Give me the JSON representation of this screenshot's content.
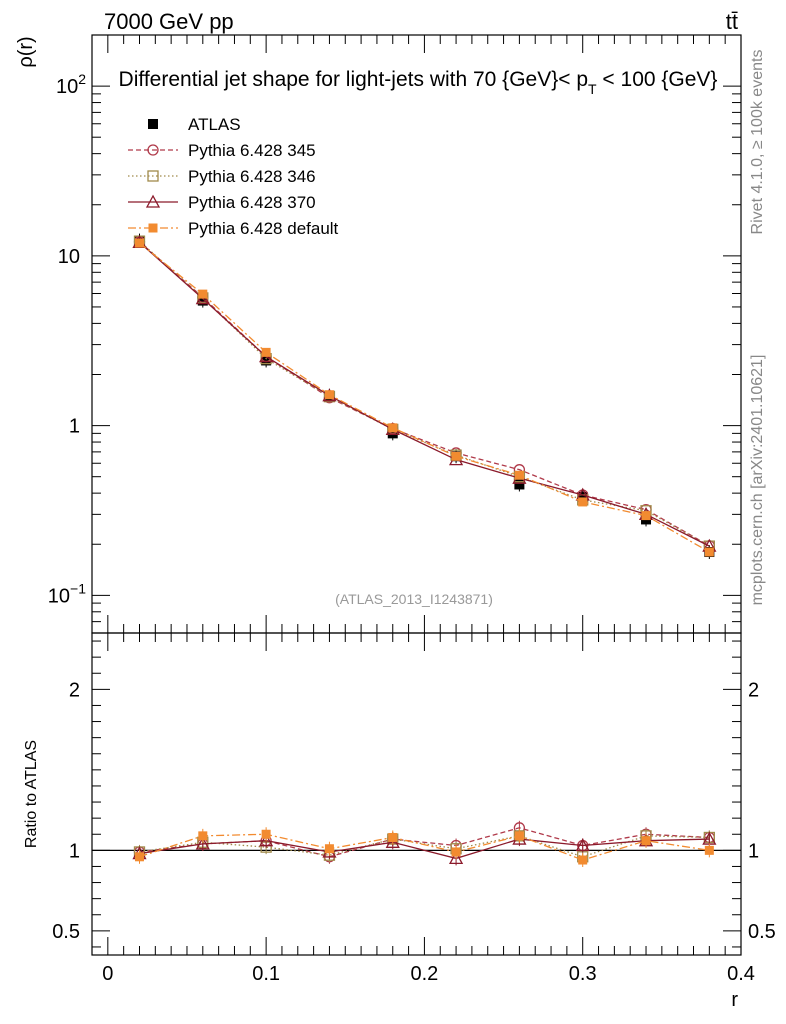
{
  "header": {
    "energy_label": "7000 GeV pp",
    "process_label": "tt̄"
  },
  "side_labels": {
    "rivet": "Rivet 4.1.0, ≥ 100k events",
    "mcplots": "mcplots.cern.ch [arXiv:2401.10621]"
  },
  "analysis_tag": "(ATLAS_2013_I1243871)",
  "chart_data": [
    {
      "type": "line",
      "title": "Differential jet shape for light-jets with 70 {GeV}< p_T < 100 {GeV}",
      "title_main": "Differential jet shape for light-jets with 70 {GeV}< p",
      "title_sub": "T",
      "title_end": " < 100 {GeV}",
      "xlabel": "r",
      "ylabel": "ρ(r)",
      "yscale": "log",
      "xlim": [
        -0.01,
        0.4
      ],
      "ylim": [
        0.06,
        200
      ],
      "x": [
        0.02,
        0.06,
        0.1,
        0.14,
        0.18,
        0.22,
        0.26,
        0.3,
        0.34,
        0.38
      ],
      "y_ticks": [
        {
          "value": 100,
          "base": "10",
          "exp": "2"
        },
        {
          "value": 10,
          "base": "10",
          "exp": ""
        },
        {
          "value": 1,
          "base": "1",
          "exp": ""
        },
        {
          "value": 0.1,
          "base": "10",
          "exp": "−1"
        }
      ],
      "series": [
        {
          "name": "ATLAS",
          "marker": "square-filled",
          "color": "#000000",
          "values": [
            12.3,
            5.45,
            2.42,
            1.5,
            0.9,
            0.66,
            0.45,
            0.38,
            0.28,
            0.18
          ]
        },
        {
          "name": "Pythia 6.428 345",
          "marker": "circle-open",
          "color": "#b03a4a",
          "dash": "5,3",
          "values": [
            12.1,
            5.7,
            2.55,
            1.46,
            0.96,
            0.69,
            0.55,
            0.39,
            0.32,
            0.196
          ]
        },
        {
          "name": "Pythia 6.428 346",
          "marker": "square-open",
          "color": "#a08a4a",
          "dash": "1.5,2.5",
          "values": [
            12.2,
            5.65,
            2.48,
            1.48,
            0.95,
            0.67,
            0.5,
            0.365,
            0.315,
            0.195
          ]
        },
        {
          "name": "Pythia 6.428 370",
          "marker": "triangle-open",
          "color": "#8b1a2b",
          "dash": "",
          "values": [
            12.0,
            5.6,
            2.55,
            1.5,
            0.95,
            0.63,
            0.49,
            0.39,
            0.3,
            0.195
          ]
        },
        {
          "name": "Pythia 6.428 default",
          "marker": "square-filled",
          "color": "#f28b30",
          "dash": "8,3,2,3",
          "values": [
            11.9,
            5.95,
            2.7,
            1.52,
            0.97,
            0.66,
            0.51,
            0.355,
            0.295,
            0.18
          ]
        }
      ]
    },
    {
      "type": "line",
      "ylabel": "Ratio to ATLAS",
      "xlabel": "r",
      "xlim": [
        -0.01,
        0.4
      ],
      "ylim": [
        0.35,
        2.35
      ],
      "y_ticks": [
        0.5,
        1,
        2
      ],
      "x_ticks": [
        0,
        0.1,
        0.2,
        0.3,
        0.4
      ],
      "x": [
        0.02,
        0.06,
        0.1,
        0.14,
        0.18,
        0.22,
        0.26,
        0.3,
        0.34,
        0.38
      ],
      "series": [
        {
          "name": "Pythia 6.428 345",
          "values": [
            0.99,
            1.04,
            1.06,
            0.96,
            1.07,
            1.03,
            1.14,
            1.03,
            1.1,
            1.08
          ]
        },
        {
          "name": "Pythia 6.428 346",
          "values": [
            0.99,
            1.05,
            1.02,
            0.97,
            1.07,
            1.01,
            1.09,
            0.96,
            1.09,
            1.08
          ]
        },
        {
          "name": "Pythia 6.428 370",
          "values": [
            0.98,
            1.04,
            1.06,
            0.99,
            1.05,
            0.95,
            1.07,
            1.03,
            1.06,
            1.07
          ]
        },
        {
          "name": "Pythia 6.428 default",
          "values": [
            0.96,
            1.09,
            1.1,
            1.01,
            1.08,
            0.99,
            1.09,
            0.94,
            1.06,
            1.0
          ]
        }
      ]
    }
  ]
}
